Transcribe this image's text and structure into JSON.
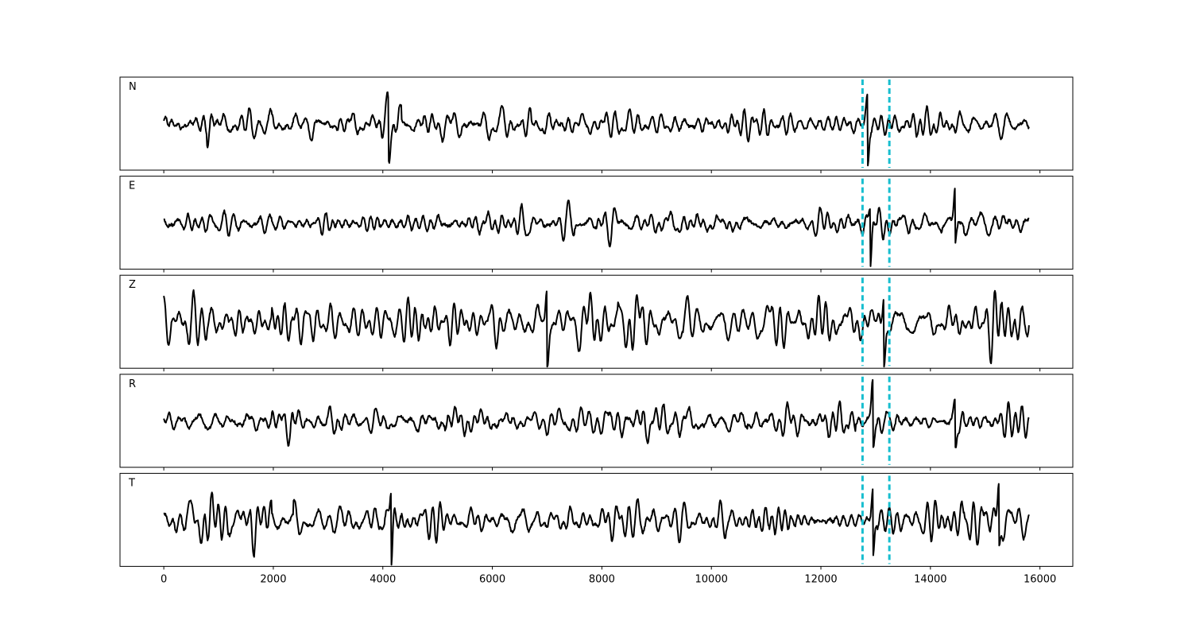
{
  "chart_data": {
    "type": "line",
    "layout": "stacked-panels",
    "title": "",
    "xlabel": "",
    "ylabel": "",
    "xlim": [
      -800,
      16600
    ],
    "xticks": [
      0,
      2000,
      4000,
      6000,
      8000,
      10000,
      12000,
      14000,
      16000
    ],
    "x_range": [
      0,
      15800
    ],
    "grid": false,
    "line_color": "#000000",
    "marker_color": "#17becf",
    "markers": {
      "style": "dashed vertical lines",
      "x": [
        12760,
        13250
      ]
    },
    "panels": [
      {
        "label": "N",
        "approx_noise_amplitude": 0.35,
        "events": [
          {
            "x": 4100,
            "peak": 1.0,
            "trough": -0.85
          },
          {
            "x": 12850,
            "peak": 0.85,
            "trough": -1.35
          }
        ]
      },
      {
        "label": "E",
        "approx_noise_amplitude": 0.3,
        "events": [
          {
            "x": 12900,
            "peak": 0.6,
            "trough": -1.3
          },
          {
            "x": 14450,
            "peak": 1.15,
            "trough": -0.6
          }
        ]
      },
      {
        "label": "Z",
        "approx_noise_amplitude": 0.55,
        "events": [
          {
            "x": 7000,
            "peak": 1.2,
            "trough": -1.2
          },
          {
            "x": 13150,
            "peak": 1.1,
            "trough": -1.1
          }
        ]
      },
      {
        "label": "R",
        "approx_noise_amplitude": 0.35,
        "events": [
          {
            "x": 12950,
            "peak": 1.35,
            "trough": -0.8
          },
          {
            "x": 14450,
            "peak": 0.6,
            "trough": -0.95
          }
        ]
      },
      {
        "label": "T",
        "approx_noise_amplitude": 0.5,
        "events": [
          {
            "x": 4150,
            "peak": 1.2,
            "trough": -1.2
          },
          {
            "x": 12950,
            "peak": 1.0,
            "trough": -1.15
          },
          {
            "x": 15250,
            "peak": 1.1,
            "trough": -0.9
          }
        ]
      }
    ]
  }
}
